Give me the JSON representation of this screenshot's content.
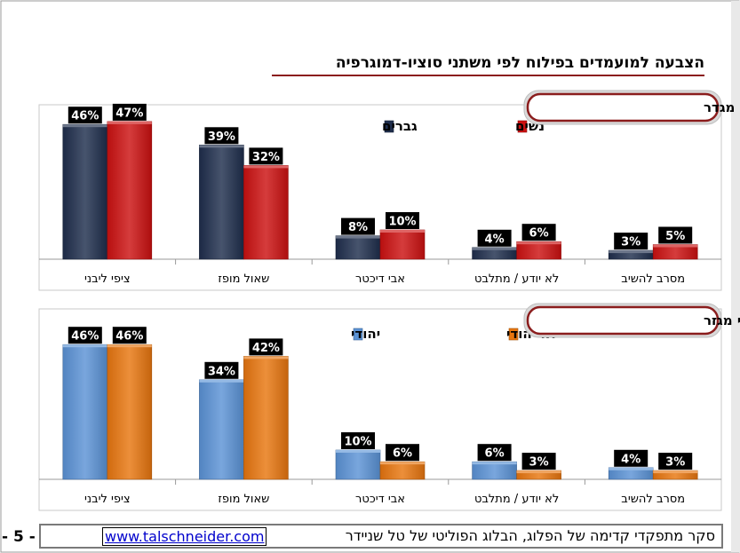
{
  "page": {
    "title": "הצבעה למועמדים בפילוח לפי משתני סוציו-דמוגרפיה",
    "footer_text": "סקר מתפקדי קדימה של הפלוג, הבלוג הפוליטי של טל שניידר",
    "footer_link": "www.talschneider.com",
    "page_number": "- 5 -"
  },
  "chart_data": [
    {
      "type": "bar",
      "title": "בפילוח לפי מגדר",
      "categories": [
        "ציפי ליבני",
        "שאול מופז",
        "אבי דיכטר",
        "לא יודע / מתלבט",
        "מסרב להשיב"
      ],
      "series": [
        {
          "name": "גברים",
          "values": [
            46,
            39,
            8,
            4,
            3
          ],
          "labels": [
            "46%",
            "39%",
            "8%",
            "4%",
            "3%"
          ],
          "color": "#1f2e4d"
        },
        {
          "name": "נשים",
          "values": [
            47,
            32,
            10,
            6,
            5
          ],
          "labels": [
            "47%",
            "32%",
            "10%",
            "6%",
            "5%"
          ],
          "color": "#cc1111"
        }
      ],
      "ylim": [
        0,
        55
      ],
      "legend": "top-right"
    },
    {
      "type": "bar",
      "title": "בפילוח לפי מגזר",
      "categories": [
        "ציפי ליבני",
        "שאול מופז",
        "אבי דיכטר",
        "לא יודע / מתלבט",
        "מסרב להשיב"
      ],
      "series": [
        {
          "name": "יהודי",
          "values": [
            46,
            34,
            10,
            6,
            4
          ],
          "labels": [
            "46%",
            "34%",
            "10%",
            "6%",
            "4%"
          ],
          "color": "#5b93d6"
        },
        {
          "name": "לא יהודי",
          "values": [
            46,
            42,
            6,
            3,
            3
          ],
          "labels": [
            "46%",
            "42%",
            "6%",
            "3%",
            "3%"
          ],
          "color": "#e8760f"
        }
      ],
      "ylim": [
        0,
        55
      ],
      "legend": "top-right"
    }
  ]
}
